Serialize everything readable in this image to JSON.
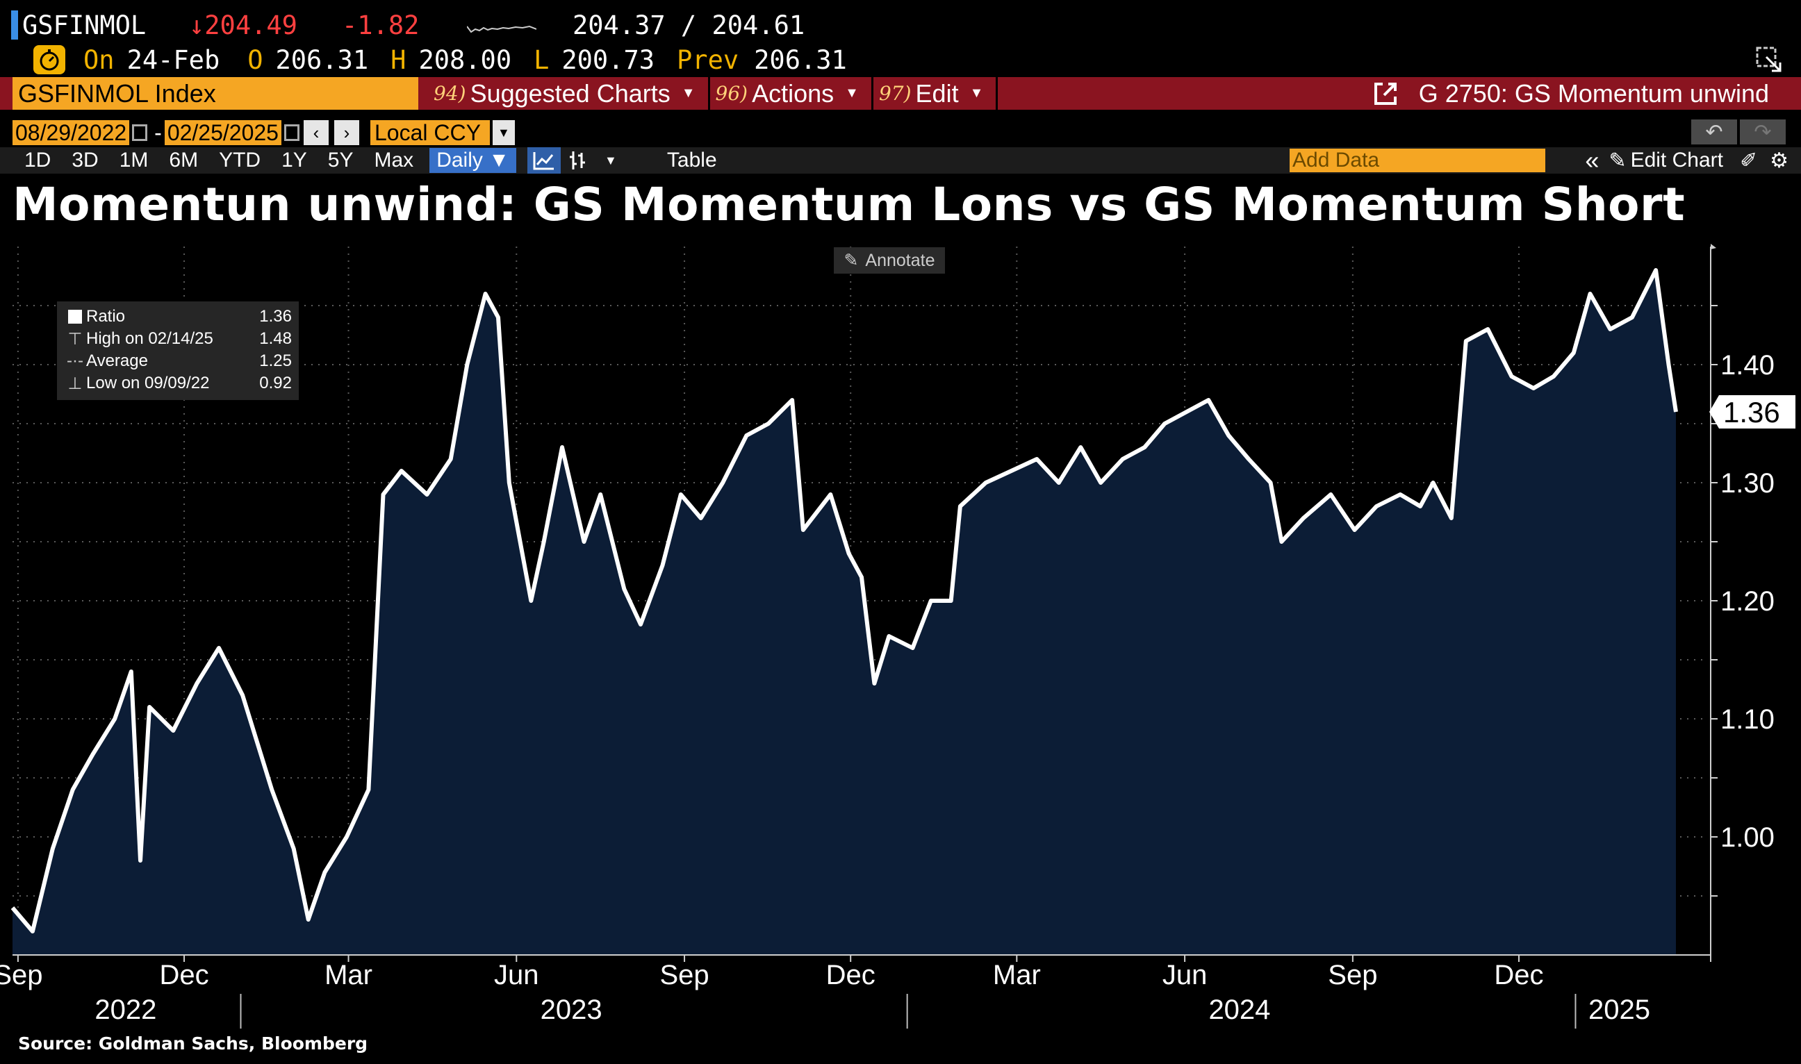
{
  "header": {
    "ticker": "GSFINMOL",
    "last_price": "↓204.49",
    "net_change": "-1.82",
    "bid_ask": "204.37 / 204.61",
    "on_label": "On",
    "on_date": "24-Feb",
    "open_label": "O",
    "open_value": "206.31",
    "high_label": "H",
    "high_value": "208.00",
    "low_label": "L",
    "low_value": "200.73",
    "prev_label": "Prev",
    "prev_value": "206.31"
  },
  "menu_bar": {
    "security": "GSFINMOL Index",
    "items": [
      {
        "num": "94)",
        "label": "Suggested Charts"
      },
      {
        "num": "96)",
        "label": "Actions"
      },
      {
        "num": "97)",
        "label": "Edit"
      }
    ],
    "chart_link": "G 2750: GS Momentum unwind"
  },
  "controls": {
    "start_date": "08/29/2022",
    "end_date": "02/25/2025",
    "currency": "Local CCY",
    "timeframes": [
      "1D",
      "3D",
      "1M",
      "6M",
      "YTD",
      "1Y",
      "5Y",
      "Max"
    ],
    "periodicity": "Daily ▼",
    "table_label": "Table",
    "add_data_placeholder": "Add Data",
    "edit_chart_label": "Edit Chart"
  },
  "annotate_label": "Annotate",
  "legend": {
    "rows": [
      {
        "name": "Ratio",
        "value": "1.36"
      },
      {
        "name": "High on 02/14/25",
        "value": "1.48"
      },
      {
        "name": "Average",
        "value": "1.25"
      },
      {
        "name": "Low on 09/09/22",
        "value": "0.92"
      }
    ]
  },
  "source": "Source: Goldman Sachs, Bloomberg",
  "colors": {
    "area_fill": "#0c1d36",
    "line": "#ffffff",
    "accent_orange": "#f5a623",
    "menu_red": "#8a1420",
    "down_red": "#ff4040"
  },
  "chart_data": {
    "type": "area",
    "title": "Momentun unwind: GS Momentum Lons vs GS Momentum Short",
    "series_name": "Ratio",
    "ylim": [
      0.9,
      1.5
    ],
    "y_ticks": [
      "1.00",
      "1.10",
      "1.20",
      "1.30",
      "1.40"
    ],
    "y_tick_values": [
      1.0,
      1.1,
      1.2,
      1.3,
      1.4
    ],
    "last_value_label": "1.36",
    "last_value": 1.36,
    "x_range": [
      "2022-08-29",
      "2025-02-25"
    ],
    "x_month_ticks": [
      {
        "date": "2022-09-01",
        "label": "Sep"
      },
      {
        "date": "2022-12-01",
        "label": "Dec"
      },
      {
        "date": "2023-03-01",
        "label": "Mar"
      },
      {
        "date": "2023-06-01",
        "label": "Jun"
      },
      {
        "date": "2023-09-01",
        "label": "Sep"
      },
      {
        "date": "2023-12-01",
        "label": "Dec"
      },
      {
        "date": "2024-03-01",
        "label": "Mar"
      },
      {
        "date": "2024-06-01",
        "label": "Jun"
      },
      {
        "date": "2024-09-01",
        "label": "Sep"
      },
      {
        "date": "2024-12-01",
        "label": "Dec"
      }
    ],
    "x_year_labels": [
      {
        "date": "2022-10-30",
        "label": "2022"
      },
      {
        "date": "2023-07-01",
        "label": "2023"
      },
      {
        "date": "2024-07-01",
        "label": "2024"
      },
      {
        "date": "2025-01-25",
        "label": "2025"
      }
    ],
    "year_separators": [
      "2023-01-01",
      "2024-01-01",
      "2025-01-01"
    ],
    "points": [
      [
        "2022-08-29",
        0.94
      ],
      [
        "2022-09-09",
        0.92
      ],
      [
        "2022-09-20",
        0.99
      ],
      [
        "2022-10-01",
        1.04
      ],
      [
        "2022-10-12",
        1.07
      ],
      [
        "2022-10-24",
        1.1
      ],
      [
        "2022-11-02",
        1.14
      ],
      [
        "2022-11-07",
        0.98
      ],
      [
        "2022-11-12",
        1.11
      ],
      [
        "2022-11-25",
        1.09
      ],
      [
        "2022-12-08",
        1.13
      ],
      [
        "2022-12-20",
        1.16
      ],
      [
        "2023-01-02",
        1.12
      ],
      [
        "2023-01-18",
        1.04
      ],
      [
        "2023-01-30",
        0.99
      ],
      [
        "2023-02-07",
        0.93
      ],
      [
        "2023-02-16",
        0.97
      ],
      [
        "2023-02-28",
        1.0
      ],
      [
        "2023-03-12",
        1.04
      ],
      [
        "2023-03-20",
        1.29
      ],
      [
        "2023-03-30",
        1.31
      ],
      [
        "2023-04-13",
        1.29
      ],
      [
        "2023-04-26",
        1.32
      ],
      [
        "2023-05-05",
        1.4
      ],
      [
        "2023-05-15",
        1.46
      ],
      [
        "2023-05-22",
        1.44
      ],
      [
        "2023-05-28",
        1.3
      ],
      [
        "2023-06-09",
        1.2
      ],
      [
        "2023-06-16",
        1.25
      ],
      [
        "2023-06-26",
        1.33
      ],
      [
        "2023-07-08",
        1.25
      ],
      [
        "2023-07-17",
        1.29
      ],
      [
        "2023-07-30",
        1.21
      ],
      [
        "2023-08-08",
        1.18
      ],
      [
        "2023-08-20",
        1.23
      ],
      [
        "2023-08-30",
        1.29
      ],
      [
        "2023-09-10",
        1.27
      ],
      [
        "2023-09-22",
        1.3
      ],
      [
        "2023-10-05",
        1.34
      ],
      [
        "2023-10-17",
        1.35
      ],
      [
        "2023-10-30",
        1.37
      ],
      [
        "2023-11-05",
        1.26
      ],
      [
        "2023-11-20",
        1.29
      ],
      [
        "2023-11-30",
        1.24
      ],
      [
        "2023-12-07",
        1.22
      ],
      [
        "2023-12-14",
        1.13
      ],
      [
        "2023-12-22",
        1.17
      ],
      [
        "2024-01-04",
        1.16
      ],
      [
        "2024-01-14",
        1.2
      ],
      [
        "2024-01-25",
        1.2
      ],
      [
        "2024-01-30",
        1.28
      ],
      [
        "2024-02-13",
        1.3
      ],
      [
        "2024-02-27",
        1.31
      ],
      [
        "2024-03-12",
        1.32
      ],
      [
        "2024-03-24",
        1.3
      ],
      [
        "2024-04-05",
        1.33
      ],
      [
        "2024-04-16",
        1.3
      ],
      [
        "2024-04-28",
        1.32
      ],
      [
        "2024-05-10",
        1.33
      ],
      [
        "2024-05-21",
        1.35
      ],
      [
        "2024-06-02",
        1.36
      ],
      [
        "2024-06-14",
        1.37
      ],
      [
        "2024-06-25",
        1.34
      ],
      [
        "2024-07-06",
        1.32
      ],
      [
        "2024-07-18",
        1.3
      ],
      [
        "2024-07-24",
        1.25
      ],
      [
        "2024-08-05",
        1.27
      ],
      [
        "2024-08-20",
        1.29
      ],
      [
        "2024-09-02",
        1.26
      ],
      [
        "2024-09-14",
        1.28
      ],
      [
        "2024-09-27",
        1.29
      ],
      [
        "2024-10-08",
        1.28
      ],
      [
        "2024-10-15",
        1.3
      ],
      [
        "2024-10-25",
        1.27
      ],
      [
        "2024-11-02",
        1.42
      ],
      [
        "2024-11-14",
        1.43
      ],
      [
        "2024-11-27",
        1.39
      ],
      [
        "2024-12-09",
        1.38
      ],
      [
        "2024-12-20",
        1.39
      ],
      [
        "2024-12-31",
        1.41
      ],
      [
        "2025-01-09",
        1.46
      ],
      [
        "2025-01-20",
        1.43
      ],
      [
        "2025-02-01",
        1.44
      ],
      [
        "2025-02-14",
        1.48
      ],
      [
        "2025-02-21",
        1.4
      ],
      [
        "2025-02-25",
        1.36
      ]
    ]
  }
}
